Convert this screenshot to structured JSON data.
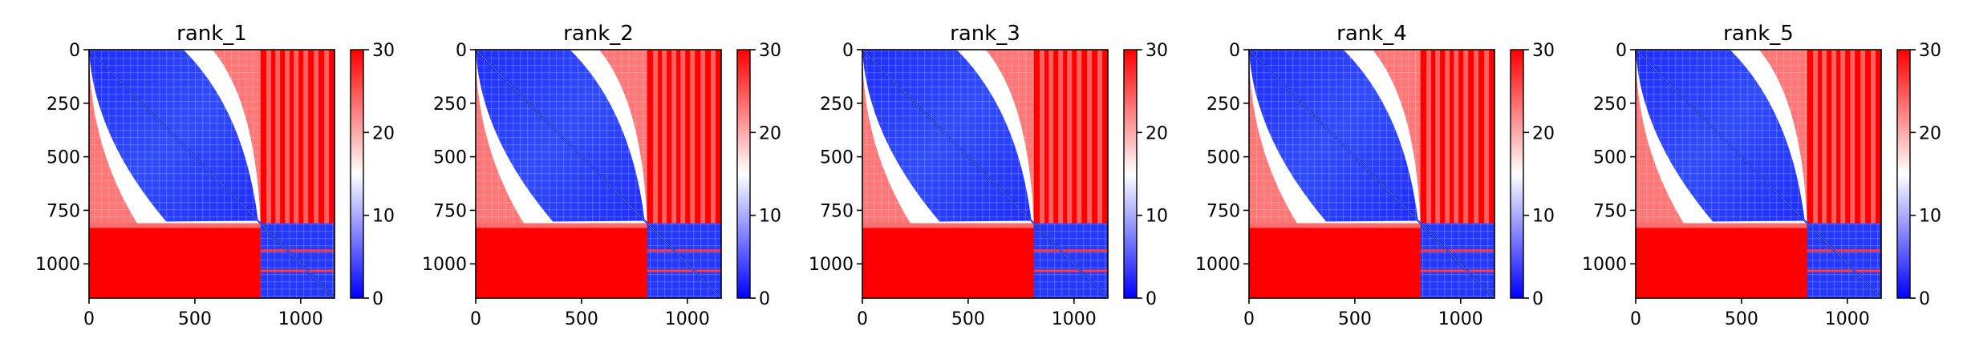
{
  "chart_data": [
    {
      "type": "heatmap",
      "title": "rank_1",
      "xlabel": "",
      "ylabel": "",
      "xlim": [
        0,
        1160
      ],
      "ylim": [
        1160,
        0
      ],
      "x_ticks": [
        "0",
        "500",
        "1000"
      ],
      "y_ticks": [
        "0",
        "250",
        "500",
        "750",
        "1000"
      ],
      "colorbar": {
        "cmap": "bwr",
        "vmin": 0,
        "vmax": 30,
        "ticks": [
          "0",
          "10",
          "20",
          "30"
        ]
      }
    },
    {
      "type": "heatmap",
      "title": "rank_2",
      "xlabel": "",
      "ylabel": "",
      "xlim": [
        0,
        1160
      ],
      "ylim": [
        1160,
        0
      ],
      "x_ticks": [
        "0",
        "500",
        "1000"
      ],
      "y_ticks": [
        "0",
        "250",
        "500",
        "750",
        "1000"
      ],
      "colorbar": {
        "cmap": "bwr",
        "vmin": 0,
        "vmax": 30,
        "ticks": [
          "0",
          "10",
          "20",
          "30"
        ]
      }
    },
    {
      "type": "heatmap",
      "title": "rank_3",
      "xlabel": "",
      "ylabel": "",
      "xlim": [
        0,
        1160
      ],
      "ylim": [
        1160,
        0
      ],
      "x_ticks": [
        "0",
        "500",
        "1000"
      ],
      "y_ticks": [
        "0",
        "250",
        "500",
        "750",
        "1000"
      ],
      "colorbar": {
        "cmap": "bwr",
        "vmin": 0,
        "vmax": 30,
        "ticks": [
          "0",
          "10",
          "20",
          "30"
        ]
      }
    },
    {
      "type": "heatmap",
      "title": "rank_4",
      "xlabel": "",
      "ylabel": "",
      "xlim": [
        0,
        1160
      ],
      "ylim": [
        1160,
        0
      ],
      "x_ticks": [
        "0",
        "500",
        "1000"
      ],
      "y_ticks": [
        "0",
        "250",
        "500",
        "750",
        "1000"
      ],
      "colorbar": {
        "cmap": "bwr",
        "vmin": 0,
        "vmax": 30,
        "ticks": [
          "0",
          "10",
          "20",
          "30"
        ]
      }
    },
    {
      "type": "heatmap",
      "title": "rank_5",
      "xlabel": "",
      "ylabel": "",
      "xlim": [
        0,
        1160
      ],
      "ylim": [
        1160,
        0
      ],
      "x_ticks": [
        "0",
        "500",
        "1000"
      ],
      "y_ticks": [
        "0",
        "250",
        "500",
        "750",
        "1000"
      ],
      "colorbar": {
        "cmap": "bwr",
        "vmin": 0,
        "vmax": 30,
        "ticks": [
          "0",
          "10",
          "20",
          "30"
        ]
      }
    }
  ],
  "colors": {
    "low": "#0000ff",
    "mid": "#ffffff",
    "high": "#ff0000",
    "axis": "#000000"
  }
}
